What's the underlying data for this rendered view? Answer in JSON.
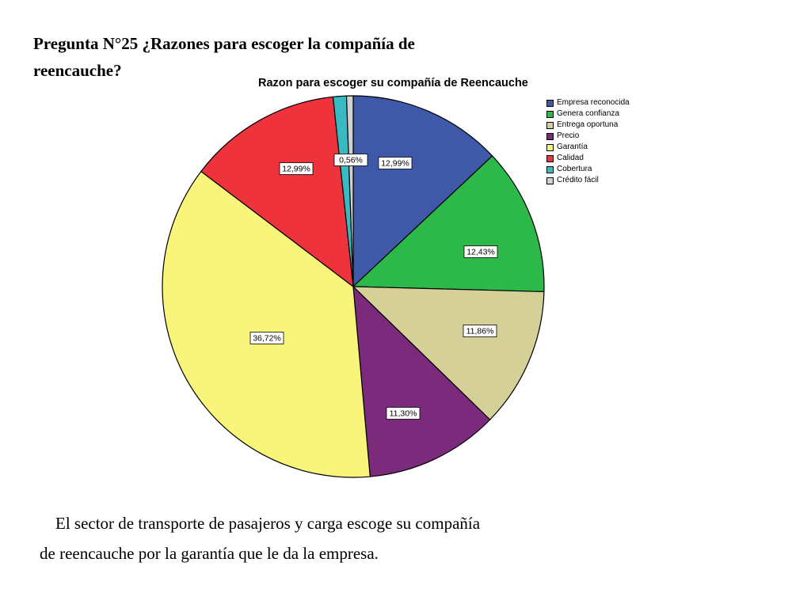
{
  "heading": {
    "line1": "Pregunta N°25 ¿Razones para escoger la compañía de",
    "line2": "reencauche?"
  },
  "caption": {
    "line1": "El sector de transporte de pasajeros y carga escoge su compañía",
    "line2": "de reencauche por la garantía que le da la empresa."
  },
  "chart_data": {
    "type": "pie",
    "title": "Razon para escoger su compañía de Reencauche",
    "legend_position": "right",
    "start_angle_deg": 0,
    "direction": "clockwise",
    "slices": [
      {
        "label": "Empresa reconocida",
        "value": 12.99,
        "value_label": "12,99%",
        "color": "#3f59a8"
      },
      {
        "label": "Genera confianza",
        "value": 12.43,
        "value_label": "12,43%",
        "color": "#2db84a"
      },
      {
        "label": "Entrega oportuna",
        "value": 11.86,
        "value_label": "11,86%",
        "color": "#d5cf98"
      },
      {
        "label": "Precio",
        "value": 11.3,
        "value_label": "11,30%",
        "color": "#7b2a7c"
      },
      {
        "label": "Garantía",
        "value": 36.72,
        "value_label": "36,72%",
        "color": "#f9f57a"
      },
      {
        "label": "Calidad",
        "value": 12.99,
        "value_label": "12,99%",
        "color": "#ee333c"
      },
      {
        "label": "Cobertura",
        "value": 1.13,
        "value_label": "",
        "color": "#39b9c2"
      },
      {
        "label": "Crédito fácil",
        "value": 0.56,
        "value_label": "0,56%",
        "color": "#cfd2d1"
      }
    ]
  }
}
